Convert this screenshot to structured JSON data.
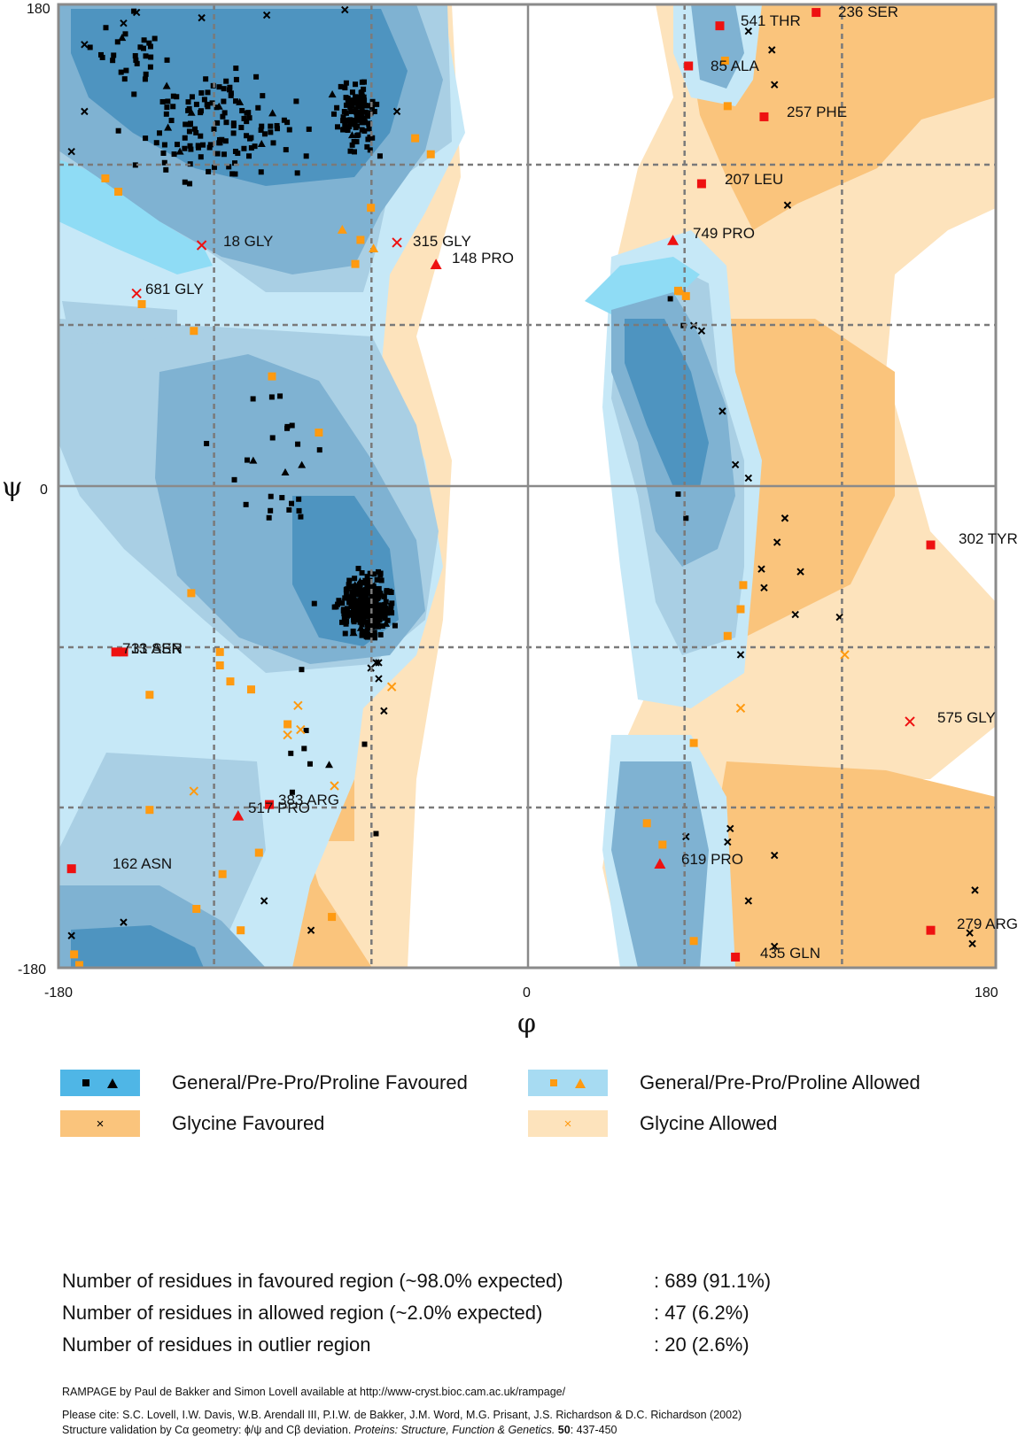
{
  "chart_data": {
    "type": "scatter",
    "title": "",
    "xlabel": "φ",
    "ylabel": "ψ",
    "xlim": [
      -180,
      180
    ],
    "ylim": [
      -180,
      180
    ],
    "x_tick_labels": [
      "-180",
      "0",
      "180"
    ],
    "y_tick_labels": [
      "180",
      "0",
      "-180"
    ],
    "gridlines": [
      -120,
      -60,
      60,
      120
    ],
    "colors": {
      "general_favoured_core": "#4e94c0",
      "general_favoured": "#7fb2d2",
      "general_allowed": "#a9cfe4",
      "general_allowed_outer": "#c6e8f7",
      "general_allowed_cyan": "#8fdcf5",
      "glycine_favoured": "#fac47c",
      "glycine_allowed": "#fde3bc",
      "outlier_marker": "#ee1111",
      "allowed_marker": "#ff9a10",
      "favoured_marker": "#000000"
    },
    "outliers": [
      {
        "label": "541 THR",
        "phi": 74,
        "psi": 172,
        "marker": "square"
      },
      {
        "label": "236 SER",
        "phi": 111,
        "psi": 177,
        "marker": "square"
      },
      {
        "label": "85 ALA",
        "phi": 62,
        "psi": 157,
        "marker": "square"
      },
      {
        "label": "257 PHE",
        "phi": 91,
        "psi": 138,
        "marker": "square"
      },
      {
        "label": "207 LEU",
        "phi": 67,
        "psi": 113,
        "marker": "square"
      },
      {
        "label": "18 GLY",
        "phi": -125,
        "psi": 90,
        "marker": "cross"
      },
      {
        "label": "315 GLY",
        "phi": -50,
        "psi": 91,
        "marker": "cross"
      },
      {
        "label": "148 PRO",
        "phi": -35,
        "psi": 83,
        "marker": "triangle"
      },
      {
        "label": "749 PRO",
        "phi": 56,
        "psi": 92,
        "marker": "triangle"
      },
      {
        "label": "681 GLY",
        "phi": -150,
        "psi": 72,
        "marker": "cross"
      },
      {
        "label": "302 TYR",
        "phi": 155,
        "psi": -22,
        "marker": "square"
      },
      {
        "label": "713 SER",
        "phi": -158,
        "psi": -62,
        "marker": "square"
      },
      {
        "label": "31 ASN",
        "phi": -155,
        "psi": -62,
        "marker": "square"
      },
      {
        "label": "575 GLY",
        "phi": 147,
        "psi": -88,
        "marker": "cross"
      },
      {
        "label": "383 ARG",
        "phi": -99,
        "psi": -119,
        "marker": "square"
      },
      {
        "label": "517 PRO",
        "phi": -111,
        "psi": -123,
        "marker": "triangle"
      },
      {
        "label": "162 ASN",
        "phi": -175,
        "psi": -143,
        "marker": "square"
      },
      {
        "label": "619 PRO",
        "phi": 51,
        "psi": -141,
        "marker": "triangle"
      },
      {
        "label": "279 ARG",
        "phi": 155,
        "psi": -166,
        "marker": "square"
      },
      {
        "label": "435 GLN",
        "phi": 80,
        "psi": -176,
        "marker": "square"
      }
    ],
    "allowed_points": [
      {
        "phi": -162,
        "psi": 115,
        "m": "s"
      },
      {
        "phi": -157,
        "psi": 110,
        "m": "s"
      },
      {
        "phi": -148,
        "psi": 68,
        "m": "s"
      },
      {
        "phi": -128,
        "psi": 58,
        "m": "s"
      },
      {
        "phi": -98,
        "psi": 41,
        "m": "s"
      },
      {
        "phi": -80,
        "psi": 20,
        "m": "s"
      },
      {
        "phi": -43,
        "psi": 130,
        "m": "s"
      },
      {
        "phi": -37,
        "psi": 124,
        "m": "s"
      },
      {
        "phi": -60,
        "psi": 104,
        "m": "s"
      },
      {
        "phi": -64,
        "psi": 92,
        "m": "s"
      },
      {
        "phi": -66,
        "psi": 83,
        "m": "s"
      },
      {
        "phi": -71,
        "psi": 96,
        "m": "t"
      },
      {
        "phi": -59,
        "psi": 89,
        "m": "t"
      },
      {
        "phi": -129,
        "psi": -40,
        "m": "s"
      },
      {
        "phi": -118,
        "psi": -62,
        "m": "s"
      },
      {
        "phi": -118,
        "psi": -67,
        "m": "s"
      },
      {
        "phi": -114,
        "psi": -73,
        "m": "s"
      },
      {
        "phi": -106,
        "psi": -76,
        "m": "s"
      },
      {
        "phi": -145,
        "psi": -78,
        "m": "s"
      },
      {
        "phi": -92,
        "psi": -89,
        "m": "s"
      },
      {
        "phi": -145,
        "psi": -121,
        "m": "s"
      },
      {
        "phi": -103,
        "psi": -137,
        "m": "s"
      },
      {
        "phi": -117,
        "psi": -145,
        "m": "s"
      },
      {
        "phi": -127,
        "psi": -158,
        "m": "s"
      },
      {
        "phi": -110,
        "psi": -166,
        "m": "s"
      },
      {
        "phi": -75,
        "psi": -161,
        "m": "s"
      },
      {
        "phi": -174,
        "psi": -175,
        "m": "s"
      },
      {
        "phi": -172,
        "psi": -179,
        "m": "s"
      },
      {
        "phi": 76,
        "psi": 159,
        "m": "s"
      },
      {
        "phi": 77,
        "psi": 142,
        "m": "s"
      },
      {
        "phi": 58,
        "psi": 73,
        "m": "s"
      },
      {
        "phi": 61,
        "psi": 71,
        "m": "s"
      },
      {
        "phi": 83,
        "psi": -37,
        "m": "s"
      },
      {
        "phi": 82,
        "psi": -46,
        "m": "s"
      },
      {
        "phi": 77,
        "psi": -56,
        "m": "s"
      },
      {
        "phi": 64,
        "psi": -96,
        "m": "s"
      },
      {
        "phi": 46,
        "psi": -126,
        "m": "s"
      },
      {
        "phi": 52,
        "psi": -134,
        "m": "s"
      },
      {
        "phi": 64,
        "psi": -170,
        "m": "s"
      },
      {
        "phi": 59,
        "psi": 73,
        "m": "t"
      }
    ],
    "glycine_allowed_points": [
      {
        "phi": -88,
        "psi": -82
      },
      {
        "phi": -87,
        "psi": -91
      },
      {
        "phi": -92,
        "psi": -93
      },
      {
        "phi": -128,
        "psi": -114
      },
      {
        "phi": -74,
        "psi": -112
      },
      {
        "phi": -52,
        "psi": -75
      },
      {
        "phi": 82,
        "psi": -83
      },
      {
        "phi": 122,
        "psi": -63
      }
    ]
  },
  "residue_labels": [
    {
      "text": "541  THR",
      "name": "label-541-thr"
    },
    {
      "text": "236  SER",
      "name": "label-236-ser"
    },
    {
      "text": "85  ALA",
      "name": "label-85-ala"
    },
    {
      "text": "257  PHE",
      "name": "label-257-phe"
    },
    {
      "text": "207  LEU",
      "name": "label-207-leu"
    },
    {
      "text": "18  GLY",
      "name": "label-18-gly"
    },
    {
      "text": "315  GLY",
      "name": "label-315-gly"
    },
    {
      "text": "148  PRO",
      "name": "label-148-pro"
    },
    {
      "text": "749  PRO",
      "name": "label-749-pro"
    },
    {
      "text": "681  GLY",
      "name": "label-681-gly"
    },
    {
      "text": "302  TYR",
      "name": "label-302-tyr"
    },
    {
      "text": "713  SER",
      "name": "label-713-ser"
    },
    {
      "text": "31  ASN",
      "name": "label-31-asn"
    },
    {
      "text": "575  GLY",
      "name": "label-575-gly"
    },
    {
      "text": "383  ARG",
      "name": "label-383-arg"
    },
    {
      "text": "517  PRO",
      "name": "label-517-pro"
    },
    {
      "text": "162  ASN",
      "name": "label-162-asn"
    },
    {
      "text": "619  PRO",
      "name": "label-619-pro"
    },
    {
      "text": "279  ARG",
      "name": "label-279-arg"
    },
    {
      "text": "435  GLN",
      "name": "label-435-gln"
    }
  ],
  "legend": {
    "general_favoured": "General/Pre-Pro/Proline Favoured",
    "general_allowed": "General/Pre-Pro/Proline Allowed",
    "glycine_favoured": "Glycine Favoured",
    "glycine_allowed": "Glycine Allowed"
  },
  "stats": {
    "favoured_label": "Number of residues in favoured region (~98.0% expected)",
    "favoured_value": ":  689  (91.1%)",
    "allowed_label": "Number of residues in allowed region (~2.0% expected)",
    "allowed_value": ":  47  (6.2%)",
    "outlier_label": "Number of residues in outlier region",
    "outlier_value": ":  20  (2.6%)"
  },
  "credits": {
    "rampage": "RAMPAGE by Paul de Bakker and Simon Lovell available at http://www-cryst.bioc.cam.ac.uk/rampage/",
    "cite": "Please cite: S.C. Lovell, I.W. Davis, W.B. Arendall III, P.I.W. de Bakker, J.M. Word, M.G. Prisant, J.S. Richardson & D.C. Richardson (2002)",
    "validation": "Structure validation by Cα geometry: ϕ/ψ and Cβ deviation.",
    "journal": "Proteins: Structure, Function & Genetics.",
    "volume": "50",
    "pages": ": 437-450"
  }
}
